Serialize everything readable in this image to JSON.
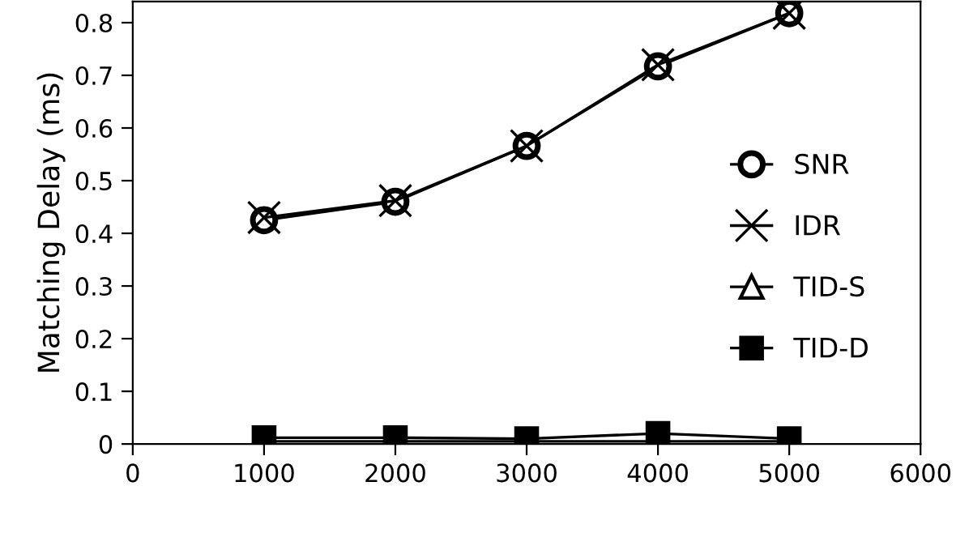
{
  "chart_data": {
    "type": "line",
    "ylabel": "Matching Delay (ms)",
    "x": [
      1000,
      2000,
      3000,
      4000,
      5000
    ],
    "series": [
      {
        "name": "SNR",
        "color": "#000000",
        "marker": "circle",
        "values": [
          0.425,
          0.46,
          0.566,
          0.717,
          0.818
        ]
      },
      {
        "name": "IDR",
        "color": "#000000",
        "marker": "cross",
        "values": [
          0.43,
          0.462,
          0.566,
          0.72,
          0.818
        ]
      },
      {
        "name": "TID-S",
        "color": "#000000",
        "marker": "triangle",
        "values": [
          0.005,
          0.005,
          0.005,
          0.005,
          0.005
        ]
      },
      {
        "name": "TID-D",
        "color": "#000000",
        "marker": "square",
        "values": [
          0.012,
          0.012,
          0.01,
          0.02,
          0.01
        ]
      }
    ],
    "xlim": [
      0,
      6000
    ],
    "xticks": [
      0,
      1000,
      2000,
      3000,
      4000,
      5000,
      6000
    ],
    "ylim": [
      0,
      0.84
    ],
    "yticks": [
      0,
      0.1,
      0.2,
      0.3,
      0.4,
      0.5,
      0.6,
      0.7,
      0.8
    ],
    "grid": false,
    "legend": "right",
    "line_style": "solid"
  }
}
